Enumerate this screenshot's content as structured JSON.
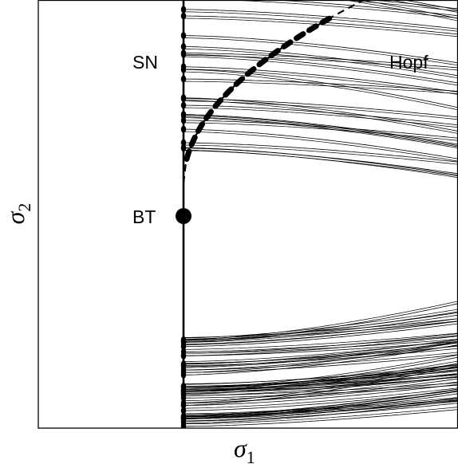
{
  "diagram": {
    "xlabel": {
      "symbol": "σ",
      "sub": "1"
    },
    "ylabel": {
      "symbol": "σ",
      "sub": "2"
    },
    "labels": {
      "sn": "SN",
      "hopf": "Hopf",
      "bt": "BT"
    },
    "colors": {
      "ink": "#000000",
      "background": "#ffffff"
    },
    "curve_families": [
      "upper",
      "lower"
    ],
    "curves_per_family": 38,
    "hopf_curve_style": "dashed",
    "sn_line_style": "solid"
  }
}
